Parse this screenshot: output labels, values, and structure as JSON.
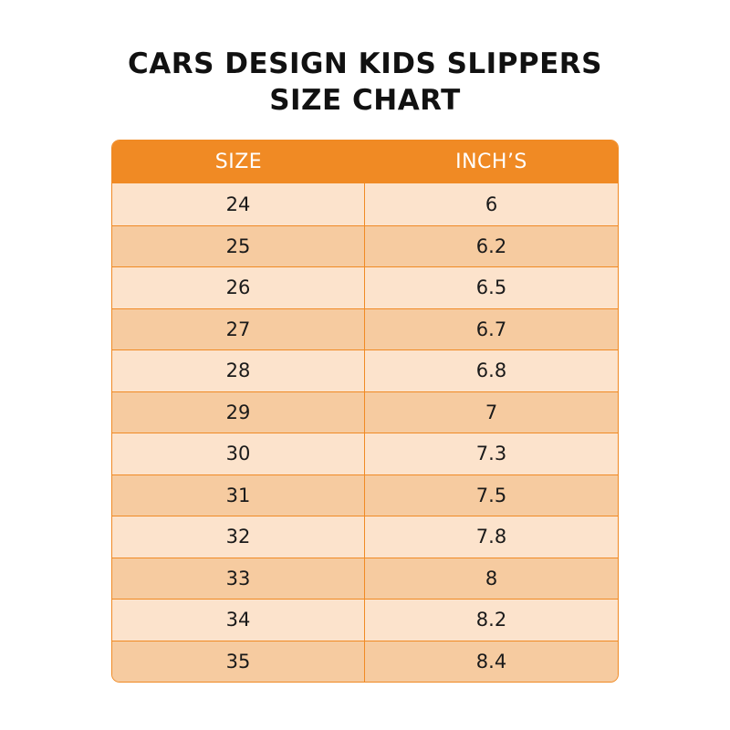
{
  "title": {
    "line1": "CARS DESIGN KIDS SLIPPERS",
    "line2": "SIZE CHART"
  },
  "colors": {
    "header": "#F08A24",
    "row_light": "#FCE3CC",
    "row_dark": "#F6CBA0",
    "border": "#F08A24"
  },
  "chart_data": {
    "type": "table",
    "title": "CARS DESIGN KIDS SLIPPERS SIZE CHART",
    "columns": [
      "SIZE",
      "INCH’S"
    ],
    "rows": [
      [
        "24",
        "6"
      ],
      [
        "25",
        "6.2"
      ],
      [
        "26",
        "6.5"
      ],
      [
        "27",
        "6.7"
      ],
      [
        "28",
        "6.8"
      ],
      [
        "29",
        "7"
      ],
      [
        "30",
        "7.3"
      ],
      [
        "31",
        "7.5"
      ],
      [
        "32",
        "7.8"
      ],
      [
        "33",
        "8"
      ],
      [
        "34",
        "8.2"
      ],
      [
        "35",
        "8.4"
      ]
    ]
  }
}
